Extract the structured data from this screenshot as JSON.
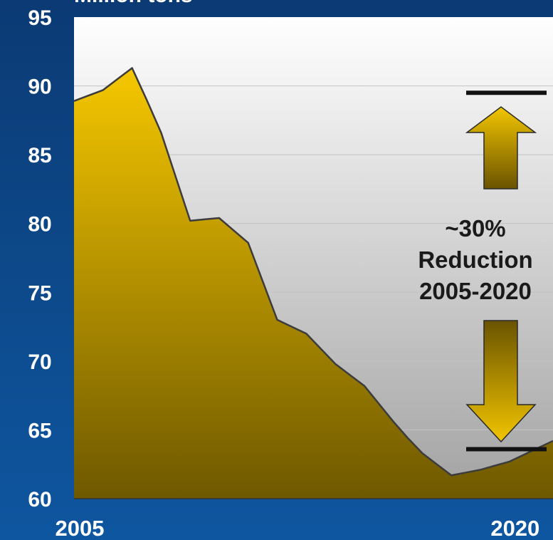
{
  "chart_data": {
    "type": "area",
    "title": "",
    "unit_label": "Million tons",
    "xlabel": "",
    "ylabel": "",
    "ylim": [
      60,
      95
    ],
    "yticks": [
      60,
      65,
      70,
      75,
      80,
      85,
      90,
      95
    ],
    "xlim": [
      2005,
      2021.5
    ],
    "xticks": [
      {
        "value": 2005,
        "label": "2005"
      },
      {
        "value": 2020,
        "label": "2020"
      }
    ],
    "grid": true,
    "series": [
      {
        "x": [
          2005,
          2005.5,
          2006,
          2006.5,
          2007,
          2007.5,
          2008,
          2008.5,
          2009,
          2009.5,
          2010,
          2010.5,
          2011,
          2011.5,
          2012,
          2012.5,
          2013,
          2013.5,
          2014,
          2014.5,
          2015,
          2015.5,
          2016,
          2016.5,
          2017,
          2017.5,
          2018,
          2018.5,
          2019,
          2019.5,
          2020,
          2020.5,
          2021,
          2021.5
        ],
        "values": [
          88.9,
          89.3,
          89.7,
          90.5,
          91.3,
          89.0,
          86.6,
          83.4,
          80.2,
          80.3,
          80.4,
          79.5,
          78.6,
          75.8,
          73.0,
          72.5,
          72.0,
          70.9,
          69.8,
          69.0,
          68.2,
          66.9,
          65.6,
          64.4,
          63.3,
          62.5,
          61.7,
          61.9,
          62.1,
          62.4,
          62.7,
          63.2,
          63.7,
          64.2
        ]
      }
    ],
    "annotation": {
      "lines": [
        "~30%",
        "Reduction",
        "2005-2020"
      ],
      "top_level": 89.5,
      "bottom_level": 63.6
    },
    "colors": {
      "fill_top": "#f7c800",
      "fill_bottom": "#6e5800",
      "outline": "#3c3c3c",
      "plot_bg_top": "#ffffff",
      "plot_bg_bottom": "#a2a2a2",
      "arrow_top": "#f2c500",
      "arrow_bottom": "#6a5300"
    }
  }
}
